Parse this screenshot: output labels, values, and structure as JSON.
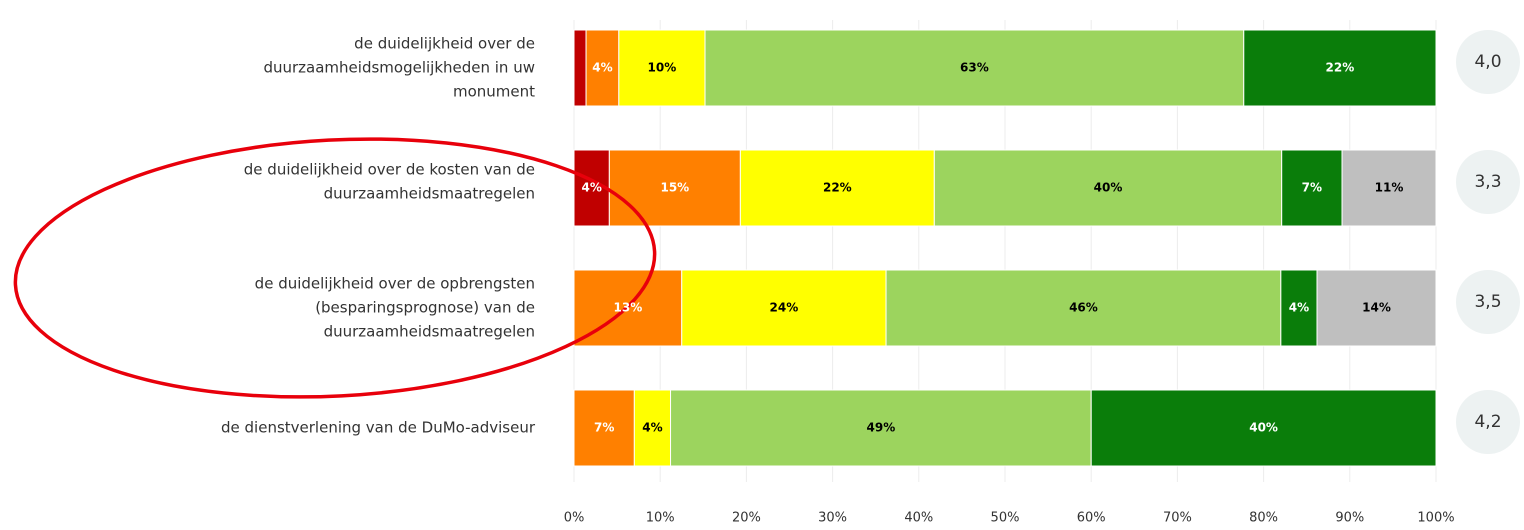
{
  "chart_data": {
    "type": "stacked_bar_horizontal",
    "categories": [
      [
        "de duidelijkheid over de",
        "duurzaamheidsmogelijkheden in uw",
        "monument"
      ],
      [
        "de duidelijkheid over de kosten van de",
        "duurzaamheidsmaatregelen"
      ],
      [
        "de duidelijkheid over de opbrengsten",
        "(besparingsprognose) van de",
        "duurzaamheidsmaatregelen"
      ],
      [
        "de dienstverlening van de DuMo-adviseur"
      ]
    ],
    "series": [
      {
        "color": "#c00000",
        "label_color": "#ffffff",
        "values": [
          1.4,
          4.1,
          null,
          null
        ],
        "value_labels": [
          null,
          "4%",
          null,
          null
        ]
      },
      {
        "color": "#ff8000",
        "label_color": "#ffffff",
        "values": [
          3.8,
          15.2,
          12.5,
          7
        ],
        "value_labels": [
          "4%",
          "15%",
          "13%",
          "7%"
        ]
      },
      {
        "color": "#ffff00",
        "label_color": "#000000",
        "values": [
          10,
          22.5,
          23.7,
          4.2
        ],
        "value_labels": [
          "10%",
          "22%",
          "24%",
          "4%"
        ]
      },
      {
        "color": "#9cd45e",
        "label_color": "#000000",
        "values": [
          62.5,
          40.3,
          45.8,
          48.8
        ],
        "value_labels": [
          "63%",
          "40%",
          "46%",
          "49%"
        ]
      },
      {
        "color": "#0a7d0a",
        "label_color": "#ffffff",
        "values": [
          22.3,
          7,
          4.2,
          40
        ],
        "value_labels": [
          "22%",
          "7%",
          "4%",
          "40%"
        ]
      },
      {
        "color": "#bfbfbf",
        "label_color": "#000000",
        "values": [
          null,
          10.9,
          13.8,
          null
        ],
        "value_labels": [
          null,
          "11%",
          "14%",
          null
        ]
      }
    ],
    "averages": [
      {
        "value": 4.0,
        "label": "4,0"
      },
      {
        "value": 3.3,
        "label": "3,3"
      },
      {
        "value": 3.5,
        "label": "3,5"
      },
      {
        "value": 4.2,
        "label": "4,2"
      }
    ],
    "xlim": [
      0,
      100
    ],
    "xticks": [
      {
        "value": 0,
        "label": "0%"
      },
      {
        "value": 10,
        "label": "10%"
      },
      {
        "value": 20,
        "label": "20%"
      },
      {
        "value": 30,
        "label": "30%"
      },
      {
        "value": 40,
        "label": "40%"
      },
      {
        "value": 50,
        "label": "50%"
      },
      {
        "value": 60,
        "label": "60%"
      },
      {
        "value": 70,
        "label": "70%"
      },
      {
        "value": 80,
        "label": "80%"
      },
      {
        "value": 90,
        "label": "90%"
      },
      {
        "value": 100,
        "label": "100%"
      }
    ],
    "grid": true
  }
}
